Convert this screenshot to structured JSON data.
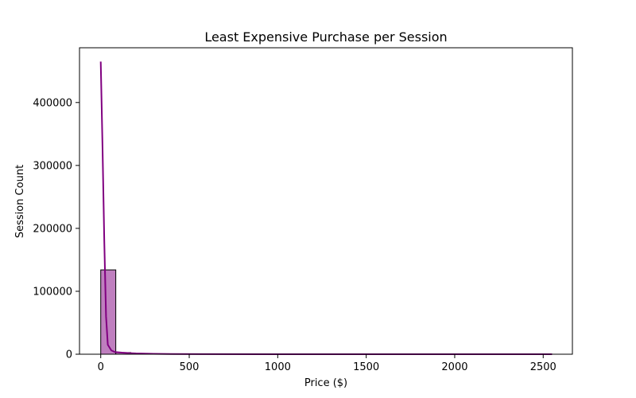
{
  "chart_data": {
    "type": "bar",
    "subtype": "histogram-with-kde",
    "title": "Least Expensive Purchase per Session",
    "xlabel": "Price ($)",
    "ylabel": "Session Count",
    "xlim": [
      -120,
      2665
    ],
    "ylim": [
      0,
      487000
    ],
    "xticks": [
      0,
      500,
      1000,
      1500,
      2000,
      2500
    ],
    "yticks": [
      0,
      100000,
      200000,
      300000,
      400000
    ],
    "bin_width": 85,
    "bins": [
      {
        "start": 0,
        "end": 85,
        "count": 134000
      },
      {
        "start": 85,
        "end": 170,
        "count": 2600
      },
      {
        "start": 170,
        "end": 255,
        "count": 1200
      },
      {
        "start": 255,
        "end": 340,
        "count": 500
      },
      {
        "start": 340,
        "end": 425,
        "count": 250
      },
      {
        "start": 425,
        "end": 510,
        "count": 150
      },
      {
        "start": 510,
        "end": 595,
        "count": 100
      },
      {
        "start": 595,
        "end": 680,
        "count": 80
      },
      {
        "start": 680,
        "end": 765,
        "count": 70
      },
      {
        "start": 765,
        "end": 850,
        "count": 60
      },
      {
        "start": 850,
        "end": 935,
        "count": 60
      },
      {
        "start": 935,
        "end": 1020,
        "count": 50
      },
      {
        "start": 1020,
        "end": 1105,
        "count": 40
      },
      {
        "start": 1105,
        "end": 1190,
        "count": 30
      },
      {
        "start": 1190,
        "end": 1275,
        "count": 30
      },
      {
        "start": 1275,
        "end": 1360,
        "count": 20
      },
      {
        "start": 1360,
        "end": 1445,
        "count": 20
      },
      {
        "start": 1445,
        "end": 1530,
        "count": 15
      },
      {
        "start": 1530,
        "end": 1615,
        "count": 15
      },
      {
        "start": 1615,
        "end": 1700,
        "count": 10
      },
      {
        "start": 1700,
        "end": 1785,
        "count": 10
      },
      {
        "start": 1785,
        "end": 1870,
        "count": 10
      },
      {
        "start": 1870,
        "end": 1955,
        "count": 8
      },
      {
        "start": 1955,
        "end": 2040,
        "count": 8
      },
      {
        "start": 2040,
        "end": 2125,
        "count": 6
      },
      {
        "start": 2125,
        "end": 2210,
        "count": 6
      },
      {
        "start": 2210,
        "end": 2295,
        "count": 5
      },
      {
        "start": 2295,
        "end": 2380,
        "count": 5
      },
      {
        "start": 2380,
        "end": 2465,
        "count": 4
      },
      {
        "start": 2465,
        "end": 2550,
        "count": 4
      }
    ],
    "kde": {
      "x": [
        0,
        10,
        20,
        30,
        40,
        60,
        80,
        120,
        160,
        200,
        300,
        400,
        600,
        1000,
        1500,
        2000,
        2550
      ],
      "y": [
        465000,
        330000,
        180000,
        60000,
        15000,
        6000,
        3500,
        2500,
        1800,
        1200,
        600,
        300,
        150,
        60,
        30,
        15,
        5
      ]
    },
    "colors": {
      "bar_fill": "#bf7fbf",
      "bar_edge": "#000000",
      "kde_line": "#800080"
    },
    "grid": false,
    "legend": "none"
  }
}
